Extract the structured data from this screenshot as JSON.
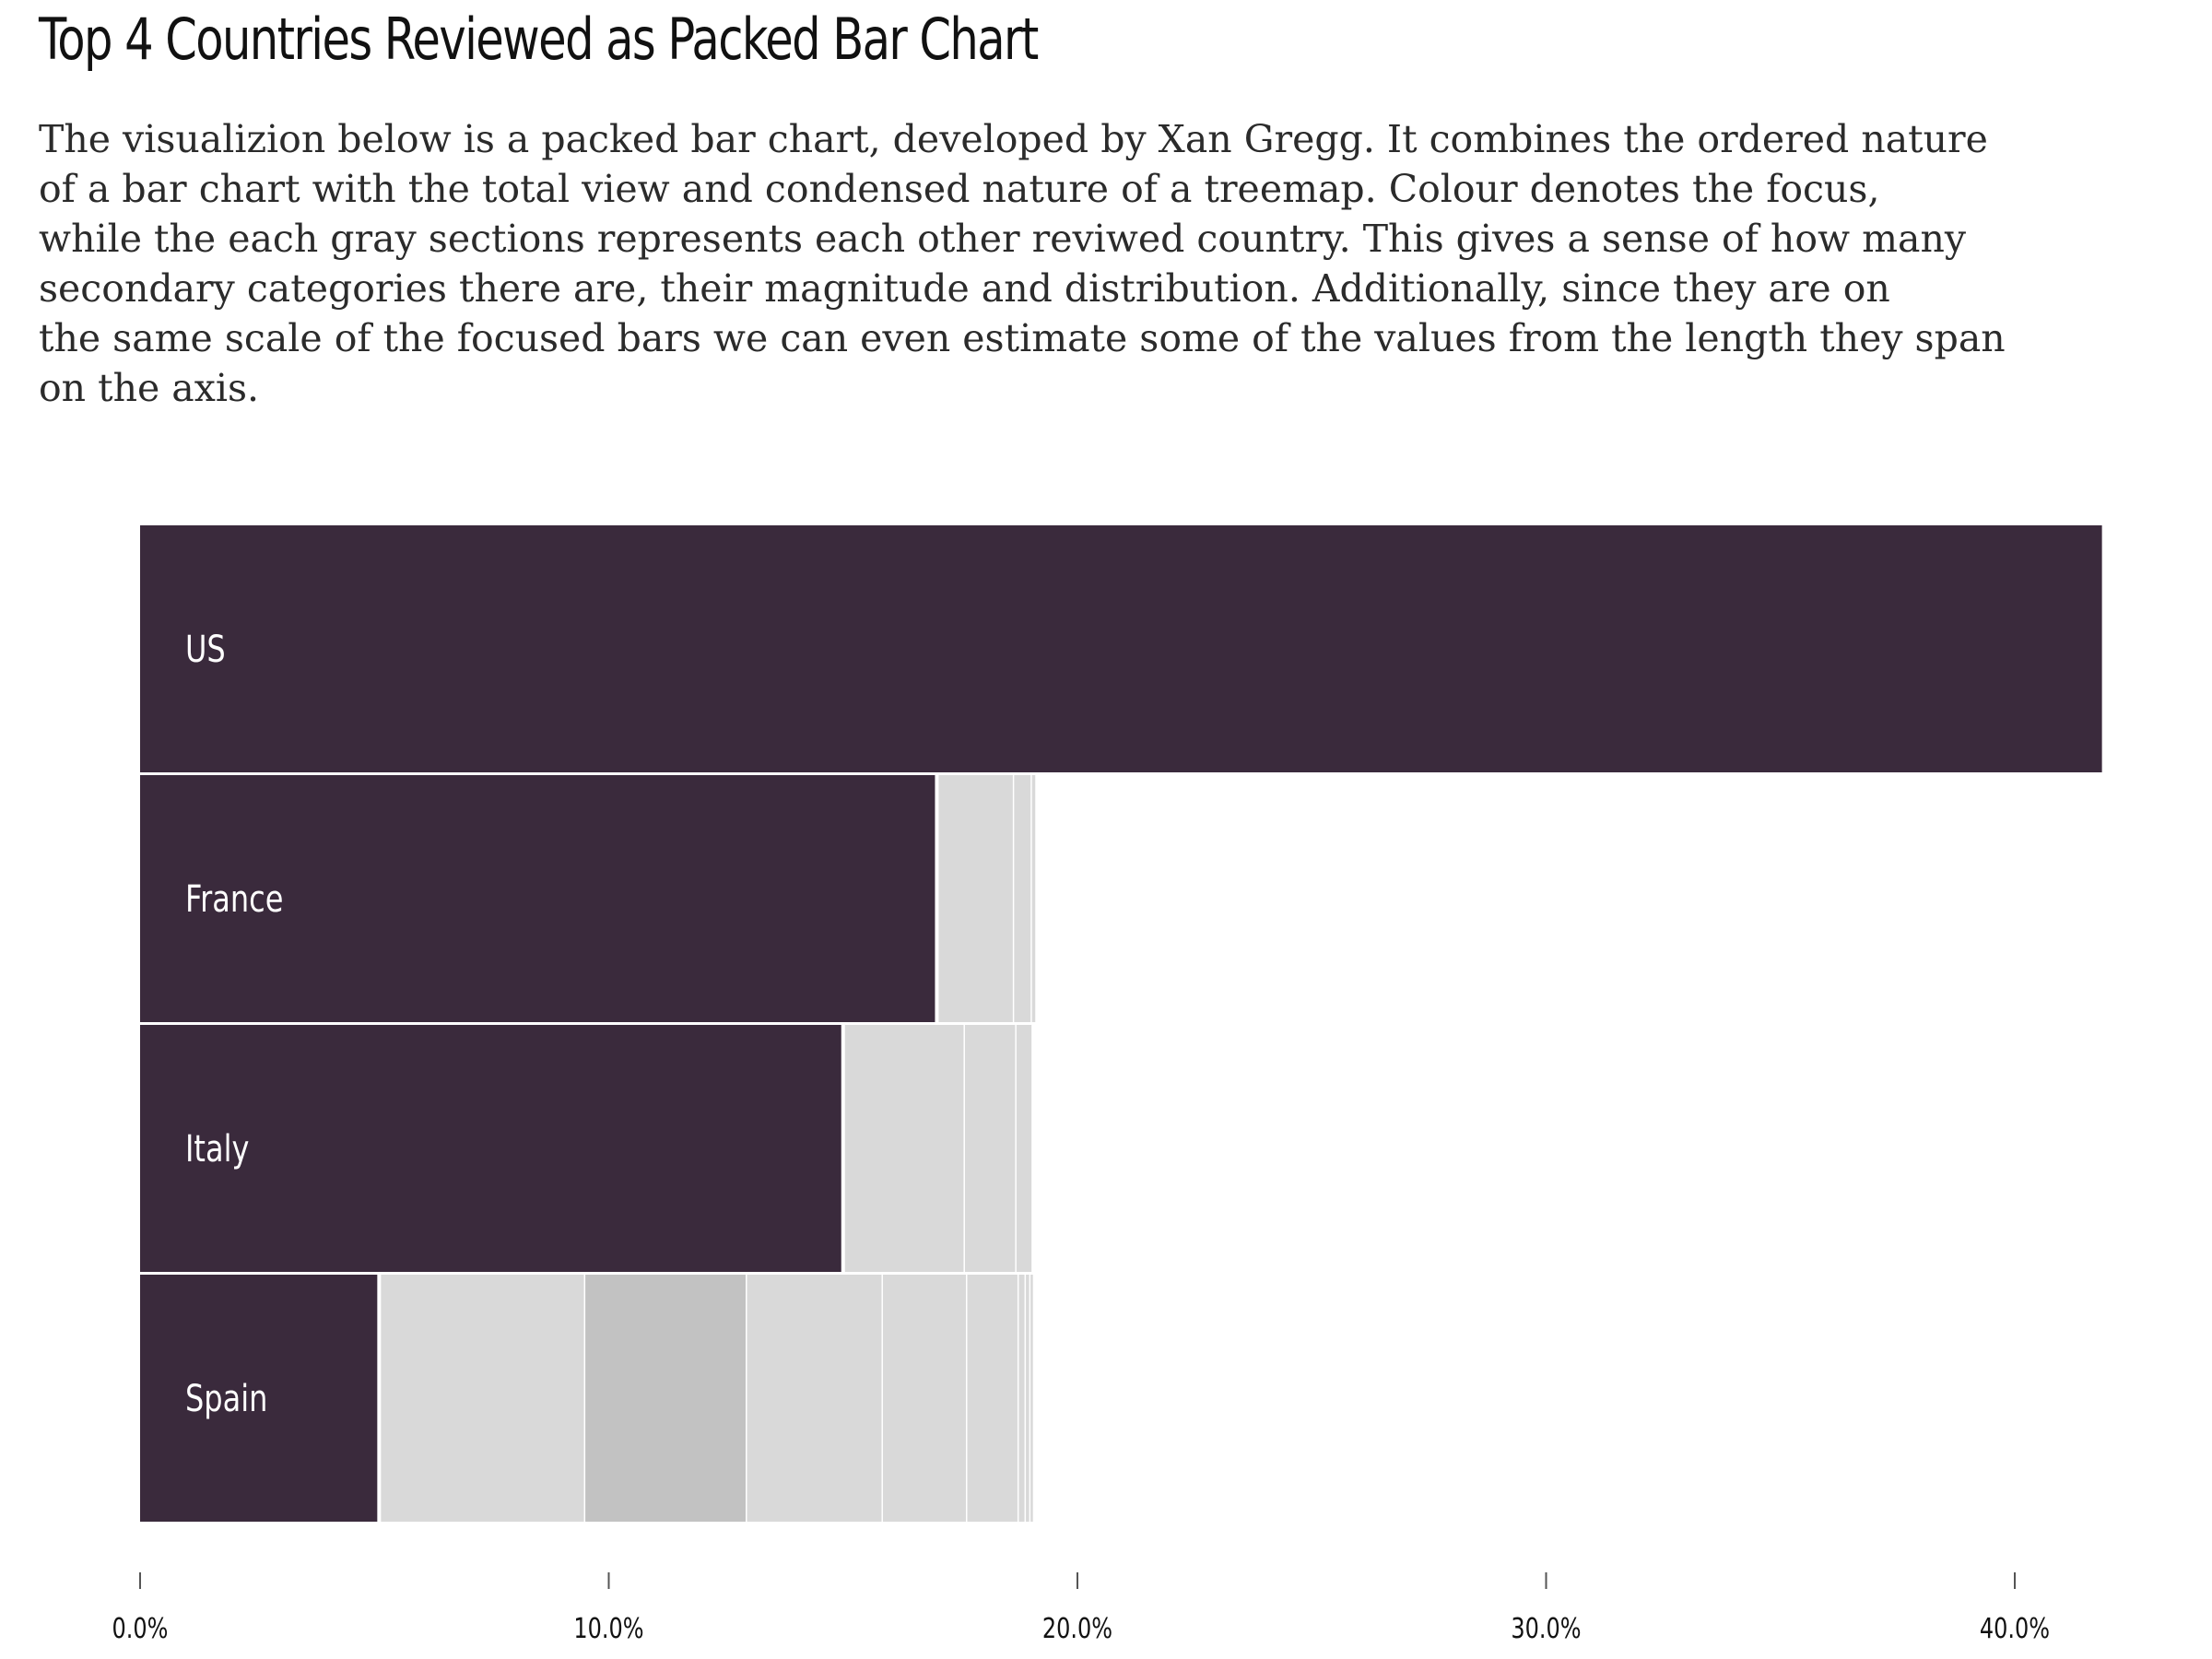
{
  "title": "Top 4 Countries Reviewed as Packed Bar Chart",
  "subtitle": "The visualizion below is a packed bar chart, developed by Xan Gregg. It combines the ordered nature\nof a bar chart with the total view and condensed nature of a treemap. Colour denotes the focus,\nwhile the each gray sections represents each other reviwed country. This gives a sense of how many\nsecondary categories there are, their magnitude and distribution. Additionally, since they are on\nthe same scale of the focused bars we can even estimate some of the values from the length they span\non the axis.",
  "colors": {
    "focus": "#3a2a3c",
    "secondary": "#d9d9d9",
    "secondary_dark": "#c2c2c2",
    "separator": "#ffffff",
    "axis": "#555555"
  },
  "chart_data": {
    "type": "bar",
    "orientation": "horizontal",
    "packed": true,
    "categories": [
      "US",
      "France",
      "Italy",
      "Spain"
    ],
    "values": [
      41.9,
      17.0,
      15.0,
      5.1
    ],
    "secondary": [
      [],
      [
        1.65,
        0.38,
        0.1
      ],
      [
        2.6,
        1.1,
        0.35
      ],
      [
        4.4,
        3.45,
        2.9,
        1.8,
        1.1,
        0.15,
        0.1,
        0.08
      ]
    ],
    "secondary_dark_index": [
      null,
      null,
      null,
      1
    ],
    "xlim": [
      0,
      43
    ],
    "xticks": [
      0,
      10,
      20,
      30,
      40
    ],
    "xtick_labels": [
      "0.0%",
      "10.0%",
      "20.0%",
      "30.0%",
      "40.0%"
    ],
    "xlabel": "",
    "ylabel": "",
    "grid": false,
    "legend": false
  }
}
